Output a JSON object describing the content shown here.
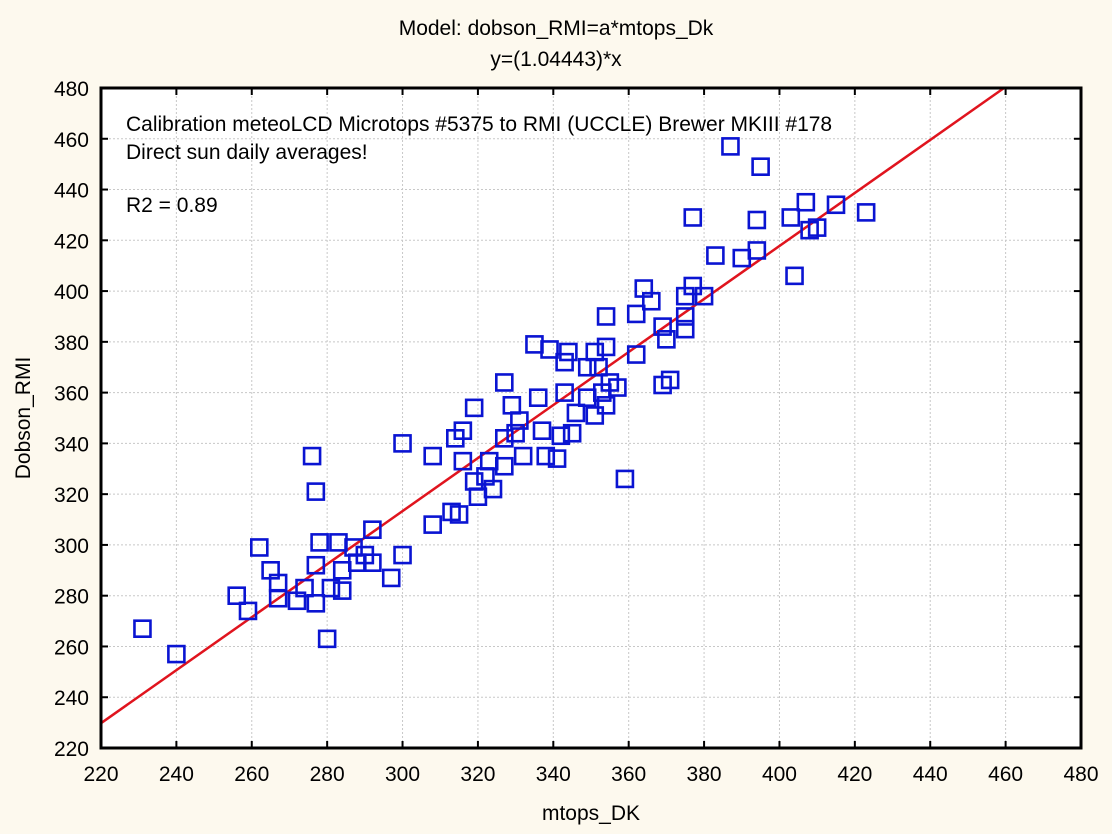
{
  "chart_data": {
    "type": "scatter",
    "title": "Model: dobson_RMI=a*mtops_Dk",
    "subtitle": "y=(1.04443)*x",
    "xlabel": "mtops_DK",
    "ylabel": "Dobson_RMI",
    "xlim": [
      220,
      480
    ],
    "ylim": [
      220,
      480
    ],
    "xticks": [
      220,
      240,
      260,
      280,
      300,
      320,
      340,
      360,
      380,
      400,
      420,
      440,
      460,
      480
    ],
    "yticks": [
      220,
      240,
      260,
      280,
      300,
      320,
      340,
      360,
      380,
      400,
      420,
      440,
      460,
      480
    ],
    "grid": true,
    "annotations": [
      "Calibration meteoLCD Microtops #5375 to RMI (UCCLE) Brewer MKIII #178",
      "Direct sun daily averages!",
      "R2 = 0.89"
    ],
    "fit_line": {
      "model": "y = a*x",
      "slope": 1.04443,
      "color": "#e0141e"
    },
    "marker": {
      "shape": "square-open",
      "color": "#0a14d2"
    },
    "points": [
      [
        231,
        267
      ],
      [
        240,
        257
      ],
      [
        256,
        280
      ],
      [
        259,
        274
      ],
      [
        262,
        299
      ],
      [
        265,
        290
      ],
      [
        267,
        285
      ],
      [
        267,
        279
      ],
      [
        272,
        278
      ],
      [
        274,
        283
      ],
      [
        277,
        292
      ],
      [
        277,
        277
      ],
      [
        276,
        335
      ],
      [
        277,
        321
      ],
      [
        278,
        301
      ],
      [
        280,
        263
      ],
      [
        281,
        283
      ],
      [
        283,
        301
      ],
      [
        284,
        282
      ],
      [
        284,
        290
      ],
      [
        287,
        299
      ],
      [
        288,
        293
      ],
      [
        290,
        296
      ],
      [
        292,
        306
      ],
      [
        292,
        293
      ],
      [
        297,
        287
      ],
      [
        300,
        296
      ],
      [
        300,
        340
      ],
      [
        308,
        308
      ],
      [
        308,
        335
      ],
      [
        313,
        313
      ],
      [
        315,
        312
      ],
      [
        314,
        342
      ],
      [
        316,
        345
      ],
      [
        316,
        333
      ],
      [
        319,
        354
      ],
      [
        319,
        325
      ],
      [
        320,
        319
      ],
      [
        322,
        327
      ],
      [
        323,
        333
      ],
      [
        324,
        322
      ],
      [
        327,
        364
      ],
      [
        327,
        342
      ],
      [
        327,
        331
      ],
      [
        329,
        355
      ],
      [
        330,
        344
      ],
      [
        331,
        349
      ],
      [
        332,
        335
      ],
      [
        335,
        379
      ],
      [
        336,
        358
      ],
      [
        337,
        345
      ],
      [
        338,
        335
      ],
      [
        339,
        377
      ],
      [
        341,
        334
      ],
      [
        342,
        343
      ],
      [
        343,
        372
      ],
      [
        343,
        360
      ],
      [
        344,
        376
      ],
      [
        345,
        344
      ],
      [
        346,
        352
      ],
      [
        349,
        370
      ],
      [
        349,
        358
      ],
      [
        351,
        351
      ],
      [
        351,
        376
      ],
      [
        352,
        370
      ],
      [
        353,
        360
      ],
      [
        354,
        390
      ],
      [
        354,
        378
      ],
      [
        354,
        355
      ],
      [
        355,
        364
      ],
      [
        357,
        362
      ],
      [
        359,
        326
      ],
      [
        362,
        375
      ],
      [
        362,
        391
      ],
      [
        364,
        401
      ],
      [
        366,
        396
      ],
      [
        369,
        363
      ],
      [
        369,
        386
      ],
      [
        370,
        381
      ],
      [
        371,
        365
      ],
      [
        375,
        390
      ],
      [
        375,
        385
      ],
      [
        375,
        398
      ],
      [
        377,
        402
      ],
      [
        377,
        429
      ],
      [
        380,
        398
      ],
      [
        383,
        414
      ],
      [
        387,
        457
      ],
      [
        390,
        413
      ],
      [
        394,
        416
      ],
      [
        394,
        428
      ],
      [
        395,
        449
      ],
      [
        403,
        429
      ],
      [
        404,
        406
      ],
      [
        407,
        435
      ],
      [
        408,
        424
      ],
      [
        410,
        425
      ],
      [
        415,
        434
      ],
      [
        423,
        431
      ]
    ]
  }
}
